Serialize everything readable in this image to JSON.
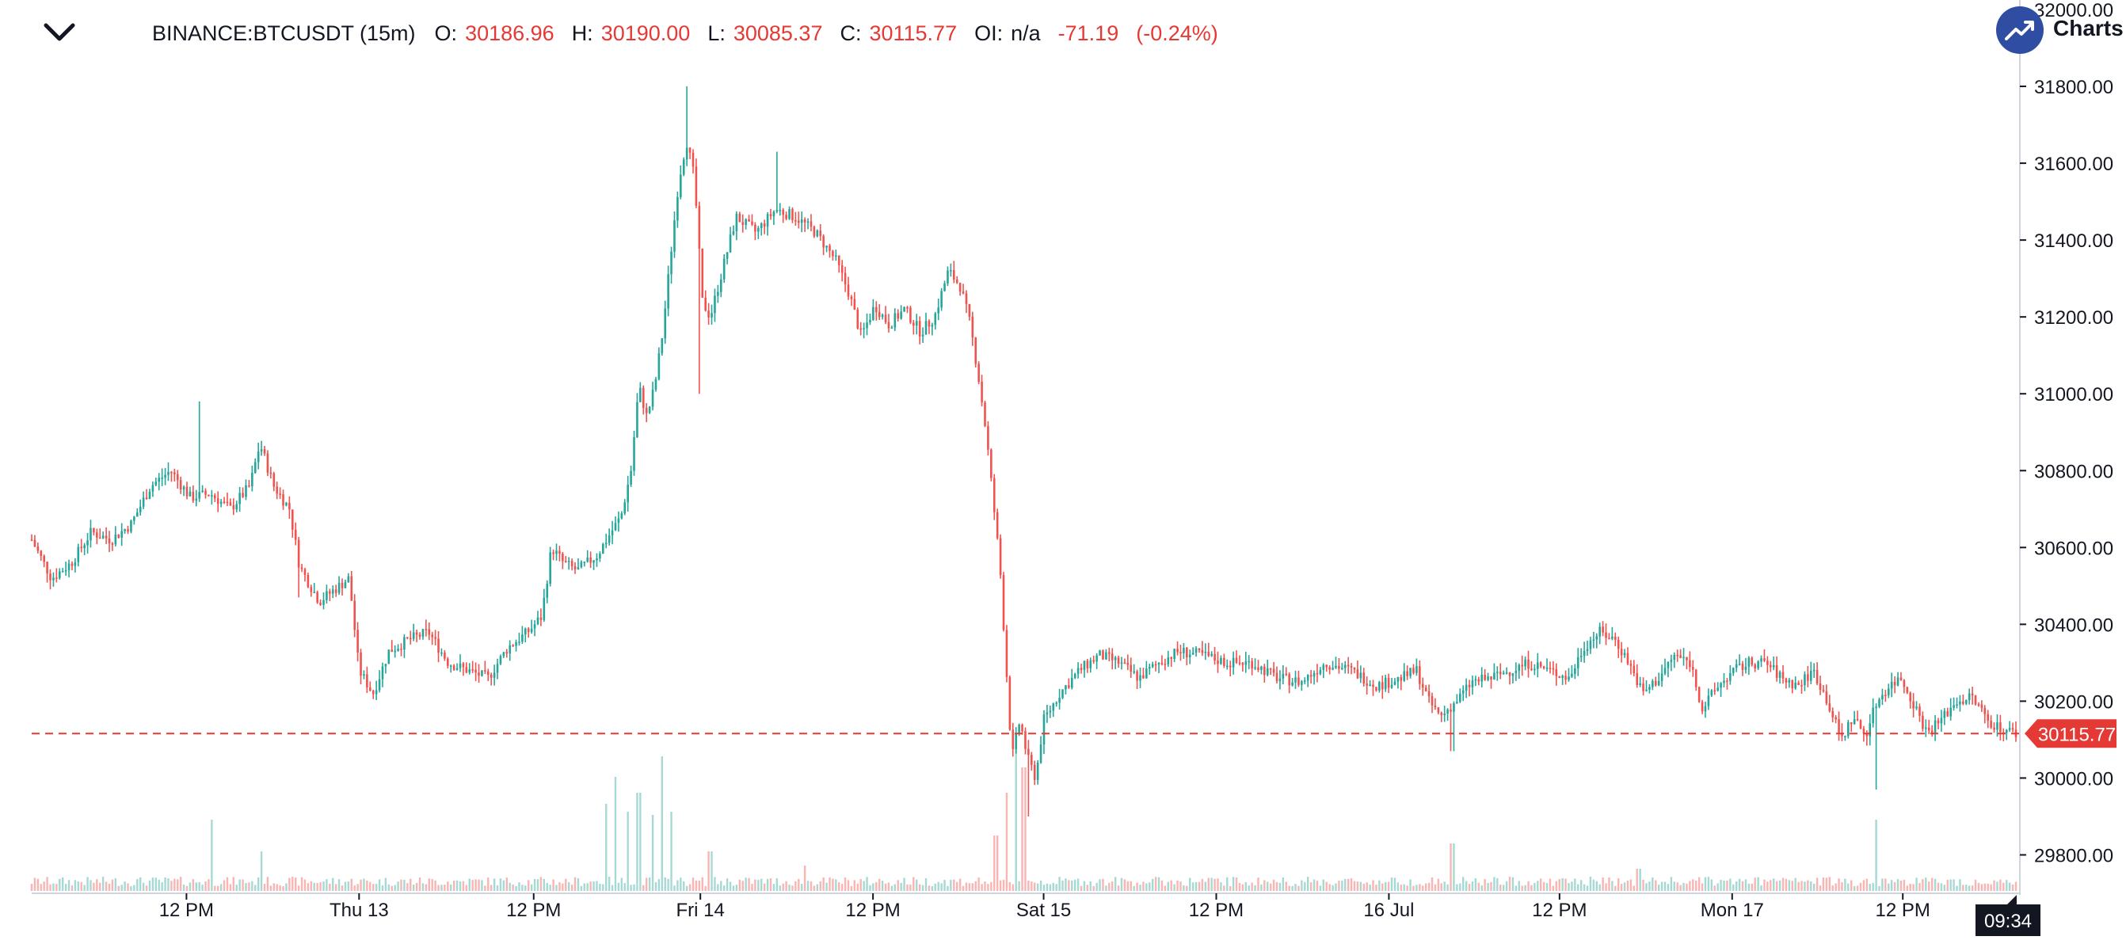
{
  "header": {
    "symbol": "BINANCE:BTCUSDT (15m)",
    "o_label": "O:",
    "o_value": "30186.96",
    "h_label": "H:",
    "h_value": "30190.00",
    "l_label": "L:",
    "l_value": "30085.37",
    "c_label": "C:",
    "c_value": "30115.77",
    "oi_label": "OI:",
    "oi_value": "n/a",
    "change": "-71.19",
    "change_pct": "(-0.24%)"
  },
  "brand": {
    "text": "Charts",
    "icon": "trend-up-icon"
  },
  "colors": {
    "up": "#26a69a",
    "down": "#ef5350",
    "up_volume": "#a6d9d3",
    "down_volume": "#f7b5b3",
    "price_line": "#e53935",
    "axis": "#131722"
  },
  "time_label": "09:34",
  "chart_data": {
    "type": "candlestick",
    "symbol": "BINANCE:BTCUSDT",
    "interval": "15m",
    "last_price": 30115.77,
    "price_label": "30115.77",
    "ylim": [
      29700,
      32000
    ],
    "y_ticks": [
      "32000.00",
      "31800.00",
      "31600.00",
      "31400.00",
      "31200.00",
      "31000.00",
      "30800.00",
      "30600.00",
      "30400.00",
      "30200.00",
      "30000.00",
      "29800.00"
    ],
    "y_tick_values": [
      32000,
      31800,
      31600,
      31400,
      31200,
      31000,
      30800,
      30600,
      30400,
      30200,
      30000,
      29800
    ],
    "x_ticks": [
      {
        "label": "12 PM",
        "t": 0.078
      },
      {
        "label": "Thu 13",
        "t": 0.165
      },
      {
        "label": "12 PM",
        "t": 0.253
      },
      {
        "label": "Fri 14",
        "t": 0.337
      },
      {
        "label": "12 PM",
        "t": 0.424
      },
      {
        "label": "Sat 15",
        "t": 0.51
      },
      {
        "label": "12 PM",
        "t": 0.597
      },
      {
        "label": "16 Jul",
        "t": 0.684
      },
      {
        "label": "12 PM",
        "t": 0.77
      },
      {
        "label": "Mon 17",
        "t": 0.857
      },
      {
        "label": "12 PM",
        "t": 0.943
      }
    ],
    "price_path": [
      [
        0.0,
        30620
      ],
      [
        0.01,
        30520
      ],
      [
        0.02,
        30560
      ],
      [
        0.03,
        30640
      ],
      [
        0.04,
        30620
      ],
      [
        0.05,
        30660
      ],
      [
        0.06,
        30760
      ],
      [
        0.07,
        30800
      ],
      [
        0.08,
        30730
      ],
      [
        0.09,
        30740
      ],
      [
        0.1,
        30700
      ],
      [
        0.11,
        30760
      ],
      [
        0.115,
        30870
      ],
      [
        0.122,
        30760
      ],
      [
        0.13,
        30700
      ],
      [
        0.135,
        30550
      ],
      [
        0.145,
        30460
      ],
      [
        0.155,
        30500
      ],
      [
        0.16,
        30520
      ],
      [
        0.165,
        30280
      ],
      [
        0.172,
        30220
      ],
      [
        0.18,
        30330
      ],
      [
        0.19,
        30360
      ],
      [
        0.2,
        30380
      ],
      [
        0.21,
        30300
      ],
      [
        0.22,
        30280
      ],
      [
        0.23,
        30260
      ],
      [
        0.24,
        30340
      ],
      [
        0.25,
        30380
      ],
      [
        0.257,
        30420
      ],
      [
        0.262,
        30600
      ],
      [
        0.268,
        30560
      ],
      [
        0.275,
        30540
      ],
      [
        0.285,
        30580
      ],
      [
        0.292,
        30640
      ],
      [
        0.297,
        30680
      ],
      [
        0.302,
        30800
      ],
      [
        0.306,
        31020
      ],
      [
        0.31,
        30940
      ],
      [
        0.314,
        31020
      ],
      [
        0.318,
        31160
      ],
      [
        0.322,
        31360
      ],
      [
        0.326,
        31550
      ],
      [
        0.33,
        31660
      ],
      [
        0.334,
        31560
      ],
      [
        0.338,
        31240
      ],
      [
        0.342,
        31200
      ],
      [
        0.348,
        31320
      ],
      [
        0.355,
        31460
      ],
      [
        0.365,
        31420
      ],
      [
        0.375,
        31480
      ],
      [
        0.385,
        31460
      ],
      [
        0.395,
        31420
      ],
      [
        0.405,
        31350
      ],
      [
        0.412,
        31260
      ],
      [
        0.418,
        31150
      ],
      [
        0.425,
        31230
      ],
      [
        0.432,
        31180
      ],
      [
        0.44,
        31220
      ],
      [
        0.448,
        31160
      ],
      [
        0.455,
        31200
      ],
      [
        0.462,
        31320
      ],
      [
        0.468,
        31280
      ],
      [
        0.473,
        31180
      ],
      [
        0.477,
        31050
      ],
      [
        0.481,
        30900
      ],
      [
        0.485,
        30700
      ],
      [
        0.488,
        30550
      ],
      [
        0.491,
        30300
      ],
      [
        0.494,
        30050
      ],
      [
        0.498,
        30150
      ],
      [
        0.502,
        30050
      ],
      [
        0.506,
        30000
      ],
      [
        0.51,
        30150
      ],
      [
        0.518,
        30220
      ],
      [
        0.528,
        30280
      ],
      [
        0.538,
        30320
      ],
      [
        0.548,
        30300
      ],
      [
        0.558,
        30260
      ],
      [
        0.568,
        30300
      ],
      [
        0.578,
        30330
      ],
      [
        0.59,
        30320
      ],
      [
        0.602,
        30300
      ],
      [
        0.615,
        30300
      ],
      [
        0.628,
        30260
      ],
      [
        0.64,
        30250
      ],
      [
        0.652,
        30300
      ],
      [
        0.665,
        30280
      ],
      [
        0.678,
        30240
      ],
      [
        0.69,
        30260
      ],
      [
        0.698,
        30280
      ],
      [
        0.704,
        30200
      ],
      [
        0.71,
        30160
      ],
      [
        0.718,
        30200
      ],
      [
        0.726,
        30250
      ],
      [
        0.735,
        30260
      ],
      [
        0.745,
        30280
      ],
      [
        0.755,
        30300
      ],
      [
        0.765,
        30280
      ],
      [
        0.775,
        30260
      ],
      [
        0.782,
        30340
      ],
      [
        0.79,
        30380
      ],
      [
        0.798,
        30360
      ],
      [
        0.805,
        30300
      ],
      [
        0.812,
        30220
      ],
      [
        0.82,
        30260
      ],
      [
        0.828,
        30320
      ],
      [
        0.836,
        30300
      ],
      [
        0.842,
        30180
      ],
      [
        0.85,
        30240
      ],
      [
        0.858,
        30280
      ],
      [
        0.866,
        30300
      ],
      [
        0.874,
        30300
      ],
      [
        0.882,
        30260
      ],
      [
        0.89,
        30240
      ],
      [
        0.898,
        30280
      ],
      [
        0.905,
        30200
      ],
      [
        0.912,
        30100
      ],
      [
        0.918,
        30160
      ],
      [
        0.924,
        30110
      ],
      [
        0.93,
        30200
      ],
      [
        0.936,
        30240
      ],
      [
        0.942,
        30260
      ],
      [
        0.948,
        30200
      ],
      [
        0.955,
        30120
      ],
      [
        0.962,
        30150
      ],
      [
        0.97,
        30200
      ],
      [
        0.978,
        30210
      ],
      [
        0.986,
        30150
      ],
      [
        0.992,
        30130
      ],
      [
        1.0,
        30116
      ]
    ],
    "spikes": [
      {
        "t": 0.085,
        "high": 30980
      },
      {
        "t": 0.135,
        "low": 30470
      },
      {
        "t": 0.33,
        "high": 31800
      },
      {
        "t": 0.376,
        "high": 31630
      },
      {
        "t": 0.337,
        "low": 31000
      },
      {
        "t": 0.502,
        "low": 29900
      },
      {
        "t": 0.716,
        "low": 30070
      },
      {
        "t": 0.93,
        "low": 29970
      }
    ],
    "volume_spikes": [
      {
        "t": 0.091,
        "h": 0.45
      },
      {
        "t": 0.116,
        "h": 0.25
      },
      {
        "t": 0.29,
        "h": 0.55
      },
      {
        "t": 0.294,
        "h": 0.72
      },
      {
        "t": 0.3,
        "h": 0.5
      },
      {
        "t": 0.306,
        "h": 0.62
      },
      {
        "t": 0.313,
        "h": 0.48
      },
      {
        "t": 0.318,
        "h": 0.85
      },
      {
        "t": 0.322,
        "h": 0.5
      },
      {
        "t": 0.342,
        "h": 0.25
      },
      {
        "t": 0.486,
        "h": 0.35
      },
      {
        "t": 0.492,
        "h": 0.62
      },
      {
        "t": 0.496,
        "h": 0.92
      },
      {
        "t": 0.5,
        "h": 0.78
      },
      {
        "t": 0.716,
        "h": 0.3
      },
      {
        "t": 0.93,
        "h": 0.45
      },
      {
        "t": 0.81,
        "h": 0.14
      },
      {
        "t": 0.39,
        "h": 0.16
      }
    ]
  }
}
